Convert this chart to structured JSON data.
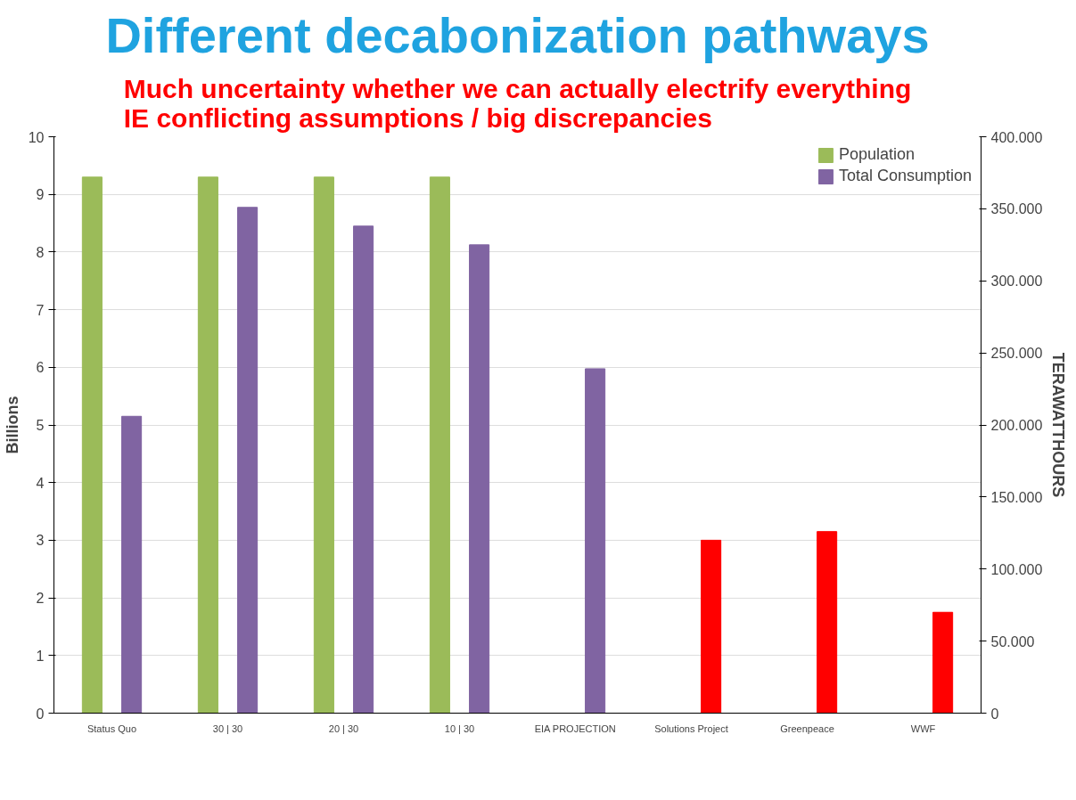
{
  "chart_data": {
    "type": "bar",
    "title": "Different decabonization pathways",
    "subtitle": "Much uncertainty whether we can actually electrify everything\nIE conflicting assumptions / big discrepancies",
    "ylabel": "Billions",
    "y2label": "TERAWATTHOURS",
    "categories": [
      "Status Quo",
      "30 | 30",
      "20 | 30",
      "10 | 30",
      "EIA PROJECTION",
      "Solutions Project",
      "Greenpeace",
      "WWF"
    ],
    "series": [
      {
        "name": "Population",
        "color": "#9bbb59",
        "values": [
          9.3,
          9.3,
          9.3,
          9.3,
          null,
          null,
          null,
          null
        ]
      },
      {
        "name": "Total Consumption",
        "color": "#8064a2",
        "axis": "y2",
        "values": [
          206000,
          351000,
          338000,
          325000,
          239000,
          120000,
          126000,
          70000
        ],
        "colors": [
          null,
          null,
          null,
          null,
          null,
          "#ff0000",
          "#ff0000",
          "#ff0000"
        ]
      }
    ],
    "ylim": [
      0,
      10
    ],
    "yticks": [
      0,
      1,
      2,
      3,
      4,
      5,
      6,
      7,
      8,
      9,
      10
    ],
    "y2lim": [
      0,
      400000
    ],
    "y2ticks": [
      {
        "value": 0,
        "label": "0"
      },
      {
        "value": 50000,
        "label": "50.000"
      },
      {
        "value": 100000,
        "label": "100.000"
      },
      {
        "value": 150000,
        "label": "150.000"
      },
      {
        "value": 200000,
        "label": "200.000"
      },
      {
        "value": 250000,
        "label": "250.000"
      },
      {
        "value": 300000,
        "label": "300.000"
      },
      {
        "value": 350000,
        "label": "350.000"
      },
      {
        "value": 400000,
        "label": "400.000"
      }
    ],
    "grid": "y",
    "legend": "top right"
  }
}
